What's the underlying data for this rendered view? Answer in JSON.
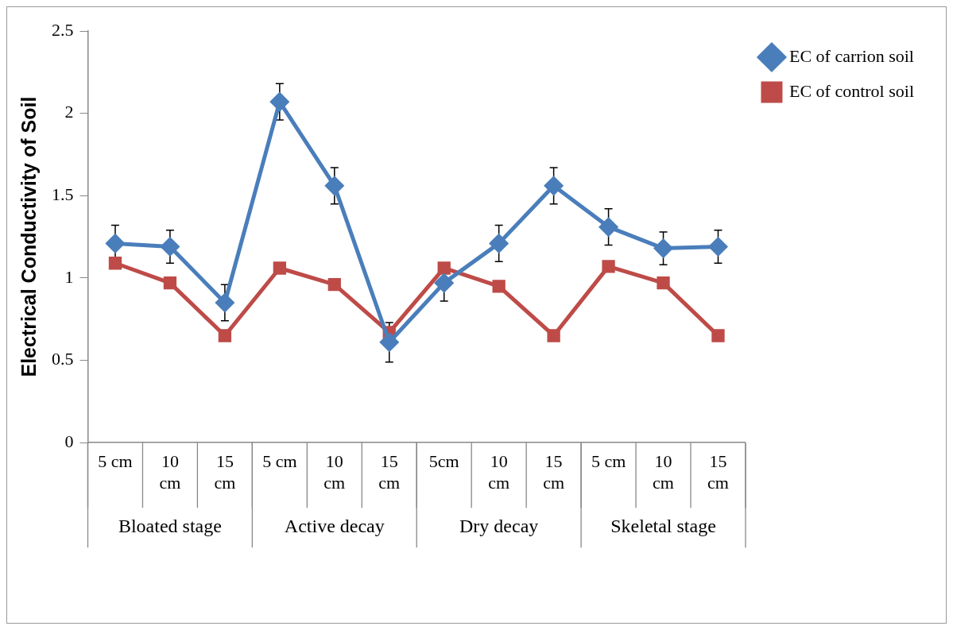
{
  "chart_data": {
    "type": "line",
    "ylabel": "Electrical Conductivity of Soil",
    "categories": [
      "5 cm",
      "10 cm",
      "15 cm",
      "5 cm",
      "10 cm",
      "15 cm",
      "5cm",
      "10 cm",
      "15 cm",
      "5 cm",
      "10 cm",
      "15 cm"
    ],
    "annotations": [
      "Bloated stage",
      "Active decay",
      "Dry decay",
      "Skeletal stage"
    ],
    "series": [
      {
        "name": "EC of carrion soil",
        "color": "#4a7ebb",
        "marker": "diamond",
        "values": [
          1.21,
          1.19,
          0.85,
          2.07,
          1.56,
          0.61,
          0.97,
          1.21,
          1.56,
          1.31,
          1.18,
          1.19
        ],
        "errors": [
          0.11,
          0.1,
          0.11,
          0.11,
          0.11,
          0.12,
          0.11,
          0.11,
          0.11,
          0.11,
          0.1,
          0.1
        ]
      },
      {
        "name": "EC of control soil",
        "color": "#be4b48",
        "marker": "square",
        "values": [
          1.09,
          0.97,
          0.65,
          1.06,
          0.96,
          0.67,
          1.06,
          0.95,
          0.65,
          1.07,
          0.97,
          0.65
        ]
      }
    ],
    "ylim": [
      0,
      2.5
    ],
    "yticks": [
      0,
      0.5,
      1,
      1.5,
      2,
      2.5
    ],
    "grid": false,
    "legend": "top right",
    "line_style": "solid"
  }
}
